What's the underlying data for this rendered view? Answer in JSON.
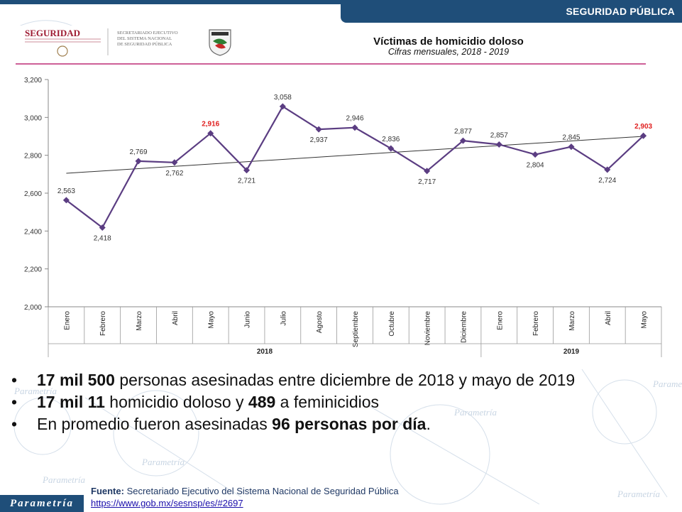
{
  "header": {
    "title": "SEGURIDAD PÚBLICA"
  },
  "logos": {
    "seguridad": "SEGURIDAD",
    "secretariado": [
      "SECRETARIADO EJECUTIVO",
      "DEL SISTEMA NACIONAL",
      "DE SEGURIDAD PÚBLICA"
    ]
  },
  "chart_data": {
    "type": "line",
    "title": "Víctimas de homicidio doloso",
    "subtitle": "Cifras mensuales, 2018 - 2019",
    "categories": [
      "Enero",
      "Febrero",
      "Marzo",
      "Abril",
      "Mayo",
      "Junio",
      "Julio",
      "Agosto",
      "Septiembre",
      "Octubre",
      "Noviembre",
      "Diciembre",
      "Enero",
      "Febrero",
      "Marzo",
      "Abril",
      "Mayo"
    ],
    "year_groups": [
      {
        "label": "2018",
        "start": 0,
        "end": 11
      },
      {
        "label": "2019",
        "start": 12,
        "end": 16
      }
    ],
    "series": [
      {
        "values": [
          2563,
          2418,
          2769,
          2762,
          2916,
          2721,
          3058,
          2937,
          2946,
          2836,
          2717,
          2877,
          2857,
          2804,
          2845,
          2724,
          2903
        ]
      }
    ],
    "data_labels": [
      "2,563",
      "2,418",
      "2,769",
      "2,762",
      "2,916",
      "2,721",
      "3,058",
      "2,937",
      "2,946",
      "2,836",
      "2,717",
      "2,877",
      "2,857",
      "2,804",
      "2,845",
      "2,724",
      "2,903"
    ],
    "highlighted_indices": [
      4,
      16
    ],
    "trendline": {
      "start": 2705,
      "end": 2900
    },
    "ylim": [
      2000,
      3200
    ],
    "yticks": [
      2000,
      2200,
      2400,
      2600,
      2800,
      3000,
      3200
    ],
    "ytick_labels": [
      "2,000",
      "2,200",
      "2,400",
      "2,600",
      "2,800",
      "3,000",
      "3,200"
    ],
    "xlabel": "",
    "ylabel": "",
    "colors": {
      "line": "#5b3d82",
      "trend": "#333333",
      "highlight": "#e02020",
      "label": "#333333"
    },
    "grid": false
  },
  "bullets": [
    {
      "bold": "17 mil 500",
      "text": " personas asesinadas entre diciembre de 2018 y mayo de 2019"
    },
    {
      "bold": "17 mil 11",
      "text": " homicidio doloso y ",
      "bold2": "489",
      "text2": " a feminicidios"
    },
    {
      "text": "En promedio fueron asesinadas ",
      "bold": "96 personas por día",
      "text2": "."
    }
  ],
  "footer": {
    "brand": "Parametría",
    "source_label": "Fuente:",
    "source_text": " Secretariado Ejecutivo del Sistema Nacional de Seguridad Pública",
    "source_url": "https://www.gob.mx/sesnsp/es/#2697"
  },
  "watermark": {
    "text": "Parametría",
    "color": "#c5d3e3"
  }
}
